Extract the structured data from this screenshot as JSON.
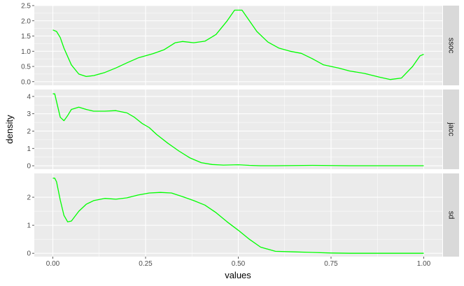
{
  "chart_data": {
    "type": "line",
    "xlabel": "values",
    "ylabel": "density",
    "xlim": [
      -0.05,
      1.05
    ],
    "x_ticks": [
      0,
      0.25,
      0.5,
      0.75,
      1
    ],
    "x_tick_labels": [
      "0.00",
      "0.25",
      "0.50",
      "0.75",
      "1.00"
    ],
    "line_color": "#00ff00",
    "panel_background": "#ebebeb",
    "strip_background": "#d9d9d9",
    "grid": true,
    "facets": [
      {
        "strip": "ssoc",
        "ylim": [
          -0.12,
          2.5
        ],
        "y_ticks": [
          0,
          0.5,
          1,
          1.5,
          2,
          2.5
        ],
        "y_tick_labels": [
          "0.0",
          "0.5",
          "1.0",
          "1.5",
          "2.0",
          "2.5"
        ],
        "x": [
          0,
          0.01,
          0.02,
          0.03,
          0.05,
          0.07,
          0.09,
          0.11,
          0.14,
          0.17,
          0.2,
          0.23,
          0.27,
          0.3,
          0.33,
          0.35,
          0.38,
          0.41,
          0.44,
          0.47,
          0.49,
          0.51,
          0.53,
          0.55,
          0.58,
          0.61,
          0.64,
          0.67,
          0.7,
          0.73,
          0.77,
          0.8,
          0.84,
          0.88,
          0.91,
          0.94,
          0.97,
          0.99,
          1.0
        ],
        "y": [
          1.7,
          1.65,
          1.45,
          1.1,
          0.55,
          0.25,
          0.17,
          0.2,
          0.3,
          0.45,
          0.62,
          0.78,
          0.92,
          1.05,
          1.28,
          1.32,
          1.28,
          1.33,
          1.55,
          2.0,
          2.35,
          2.35,
          2.0,
          1.65,
          1.3,
          1.1,
          1.0,
          0.93,
          0.75,
          0.55,
          0.45,
          0.35,
          0.27,
          0.15,
          0.07,
          0.12,
          0.5,
          0.85,
          0.9
        ]
      },
      {
        "strip": "jacc",
        "ylim": [
          -0.2,
          4.4
        ],
        "y_ticks": [
          0,
          1,
          2,
          3,
          4
        ],
        "y_tick_labels": [
          "0",
          "1",
          "2",
          "3",
          "4"
        ],
        "x": [
          0,
          0.005,
          0.01,
          0.02,
          0.03,
          0.04,
          0.05,
          0.07,
          0.09,
          0.11,
          0.14,
          0.17,
          0.2,
          0.22,
          0.24,
          0.26,
          0.28,
          0.31,
          0.34,
          0.37,
          0.4,
          0.43,
          0.46,
          0.5,
          0.53,
          0.56,
          0.6,
          0.7,
          0.8,
          0.9,
          1.0
        ],
        "y": [
          4.15,
          4.15,
          3.7,
          2.8,
          2.6,
          2.9,
          3.25,
          3.38,
          3.25,
          3.15,
          3.15,
          3.18,
          3.05,
          2.8,
          2.45,
          2.2,
          1.8,
          1.3,
          0.85,
          0.45,
          0.18,
          0.07,
          0.04,
          0.06,
          0.02,
          0.0,
          0.0,
          0.02,
          0.0,
          0.0,
          0.0
        ]
      },
      {
        "strip": "sd",
        "ylim": [
          -0.12,
          2.85
        ],
        "y_ticks": [
          0,
          1,
          2
        ],
        "y_tick_labels": [
          "0",
          "1",
          "2"
        ],
        "x": [
          0,
          0.005,
          0.01,
          0.02,
          0.03,
          0.04,
          0.05,
          0.07,
          0.09,
          0.11,
          0.14,
          0.17,
          0.2,
          0.23,
          0.26,
          0.29,
          0.32,
          0.35,
          0.38,
          0.41,
          0.44,
          0.47,
          0.5,
          0.53,
          0.56,
          0.6,
          0.65,
          0.7,
          0.75,
          0.8,
          0.9,
          1.0
        ],
        "y": [
          2.68,
          2.68,
          2.55,
          1.9,
          1.35,
          1.12,
          1.15,
          1.5,
          1.75,
          1.88,
          1.96,
          1.93,
          1.98,
          2.08,
          2.15,
          2.17,
          2.15,
          2.02,
          1.88,
          1.72,
          1.45,
          1.12,
          0.82,
          0.5,
          0.22,
          0.07,
          0.05,
          0.03,
          0.01,
          0.0,
          0.0,
          0.0
        ]
      }
    ]
  }
}
